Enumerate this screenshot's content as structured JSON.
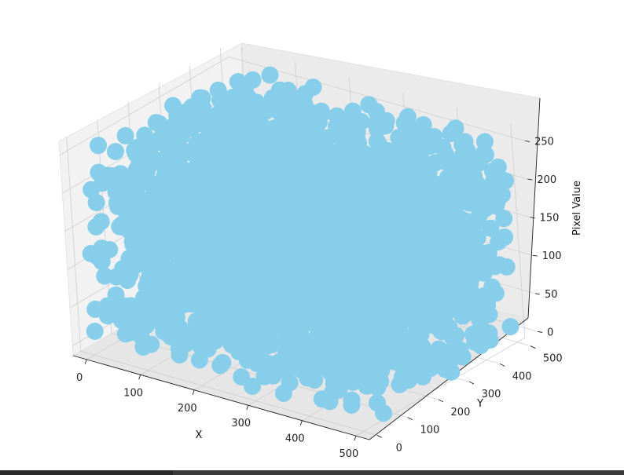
{
  "chart_data": {
    "type": "scatter",
    "projection": "3d",
    "title": "",
    "xlabel": "X",
    "ylabel": "Y",
    "zlabel": "Pixel Value",
    "x_ticks": [
      "0",
      "100",
      "200",
      "300",
      "400",
      "500"
    ],
    "y_ticks": [
      "0",
      "100",
      "200",
      "300",
      "400",
      "500"
    ],
    "z_ticks": [
      "0",
      "50",
      "100",
      "150",
      "200",
      "250"
    ],
    "xlim": [
      -25,
      525
    ],
    "ylim": [
      -25,
      525
    ],
    "zlim": [
      -13,
      268
    ],
    "grid": true,
    "point_color": "#87CEEB",
    "series": [
      {
        "x_range": [
          0,
          511
        ],
        "y_range": [
          0,
          511
        ],
        "z_range": [
          0,
          255
        ]
      }
    ]
  }
}
